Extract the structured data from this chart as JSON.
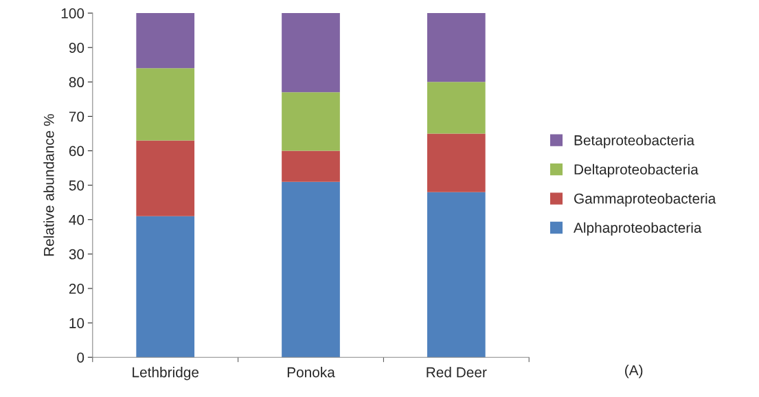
{
  "chart_data": {
    "type": "bar",
    "stacked": true,
    "ylabel": "Relative abundance %",
    "categories": [
      "Lethbridge",
      "Ponoka",
      "Red Deer"
    ],
    "series": [
      {
        "name": "Alphaproteobacteria",
        "color": "#4f81bd",
        "values": [
          41,
          51,
          48
        ]
      },
      {
        "name": "Gammaproteobacteria",
        "color": "#c0504d",
        "values": [
          22,
          9,
          17
        ]
      },
      {
        "name": "Deltaproteobacteria",
        "color": "#9bbb59",
        "values": [
          21,
          17,
          15
        ]
      },
      {
        "name": "Betaproteobacteria",
        "color": "#8064a2",
        "values": [
          16,
          23,
          20
        ]
      }
    ],
    "ylim": [
      0,
      100
    ],
    "yticks": [
      0,
      10,
      20,
      30,
      40,
      50,
      60,
      70,
      80,
      90,
      100
    ],
    "legend": "right",
    "annotations": [
      "(A)"
    ]
  }
}
